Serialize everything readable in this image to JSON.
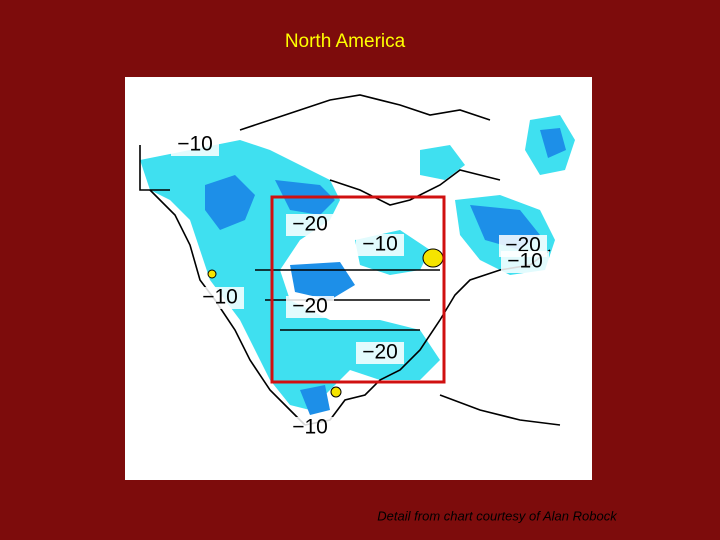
{
  "header": {
    "title": "North America"
  },
  "map": {
    "contour_labels": [
      "−10",
      "−20",
      "−10",
      "−20",
      "−10",
      "−10",
      "−20",
      "−20",
      "−10"
    ]
  },
  "footer": {
    "caption": "Detail from chart courtesy of Alan Robock"
  }
}
